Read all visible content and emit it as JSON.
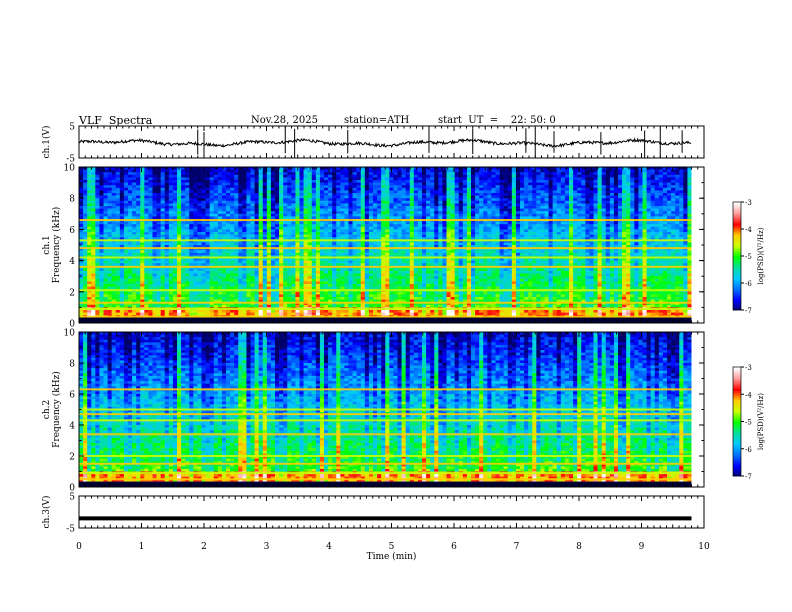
{
  "header": {
    "title": "VLF  Spectra",
    "date": "Nov.28, 2025",
    "station": "station=ATH",
    "start": "start  UT  =    22: 50: 0"
  },
  "chart_data": [
    {
      "type": "line",
      "panel": "ch1-waveform",
      "ylabel": "ch.1(V)",
      "ylim": [
        -5,
        5
      ],
      "xlim": [
        0,
        9.8
      ],
      "yticks": [
        "5",
        "-5"
      ],
      "baseline": -0.3,
      "x_units": "min",
      "spikes_x": [
        1.9,
        2.0,
        3.3,
        3.45,
        4.3,
        5.6,
        6.3,
        7.15,
        7.3,
        7.6,
        8.35,
        9.05,
        9.3,
        9.65
      ]
    },
    {
      "type": "heatmap",
      "panel": "ch1-spectrogram",
      "ylabel_top": "ch.1",
      "ylabel": "Frequency  (kHz)",
      "ylim": [
        0,
        10
      ],
      "yticks": [
        "10",
        "8",
        "6",
        "4",
        "2",
        "0"
      ],
      "xlim": [
        0,
        9.8
      ],
      "colorbar": {
        "label": "log(PSD)(V²/Hz)",
        "range": [
          -7,
          -3
        ],
        "ticks": [
          "-3",
          "-4",
          "-5",
          "-6",
          "-7"
        ]
      },
      "bands_khz": [
        0.4,
        0.9,
        1.3,
        2.1,
        3.6,
        4.2,
        4.8,
        5.3,
        6.6
      ]
    },
    {
      "type": "heatmap",
      "panel": "ch2-spectrogram",
      "ylabel_top": "ch.2",
      "ylabel": "Frequency  (kHz)",
      "ylim": [
        0,
        10
      ],
      "yticks": [
        "10",
        "8",
        "6",
        "4",
        "2",
        "0"
      ],
      "xlim": [
        0,
        9.8
      ],
      "colorbar": {
        "label": "log(PSD)(V²/Hz)",
        "range": [
          -7,
          -3
        ],
        "ticks": [
          "-3",
          "-4",
          "-5",
          "-6",
          "-7"
        ]
      },
      "bands_khz": [
        0.5,
        0.9,
        1.5,
        2.0,
        3.4,
        4.3,
        4.7,
        5.0,
        6.3
      ]
    },
    {
      "type": "line",
      "panel": "ch3-waveform",
      "ylabel": "ch.3(V)",
      "ylim": [
        -5,
        5
      ],
      "yticks": [
        "5",
        "-5"
      ],
      "xlim": [
        0,
        9.8
      ],
      "baseline": -2
    }
  ],
  "xaxis": {
    "label": "Time  (min)",
    "range": [
      0,
      10
    ],
    "ticks": [
      "0",
      "1",
      "2",
      "3",
      "4",
      "5",
      "6",
      "7",
      "8",
      "9",
      "10"
    ]
  },
  "colors": {
    "waveform": "#000000",
    "cmap": [
      "#000066",
      "#0000ff",
      "#0070ff",
      "#00c8ff",
      "#00e0a0",
      "#00ff00",
      "#c8ff00",
      "#ffcc00",
      "#ff0000",
      "#ff9999",
      "#ffffff"
    ]
  }
}
